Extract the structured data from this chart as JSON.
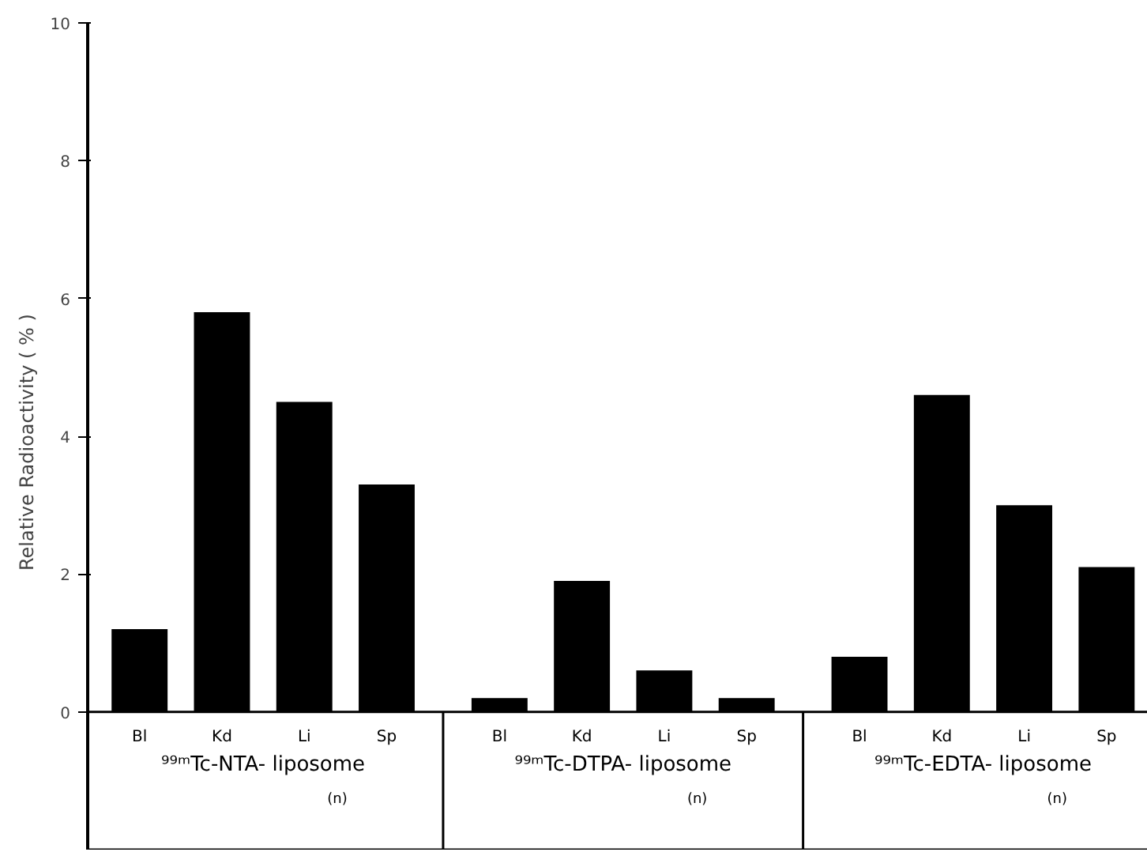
{
  "chart_data": {
    "type": "bar",
    "ylabel": "Relative   Radioactivity ( % )",
    "categories": [
      "Bl",
      "Kd",
      "Li",
      "Sp",
      "Bl",
      "Kd",
      "Li",
      "Sp",
      "Bl",
      "Kd",
      "Li",
      "Sp"
    ],
    "values": [
      1.2,
      5.8,
      4.5,
      3.3,
      0.2,
      1.9,
      0.6,
      0.2,
      0.8,
      4.6,
      3.0,
      2.1
    ],
    "color": "#000000",
    "ylim": [
      0,
      10
    ],
    "yticks": [
      0,
      2,
      4,
      6,
      8,
      10
    ],
    "annotations": [
      "⁹⁹ᵐTc-NTA- liposome\n(n)",
      "⁹⁹ᵐTc-DTPA- liposome\n(n)",
      "⁹⁹ᵐTc-EDTA- liposome\n(n)"
    ]
  }
}
